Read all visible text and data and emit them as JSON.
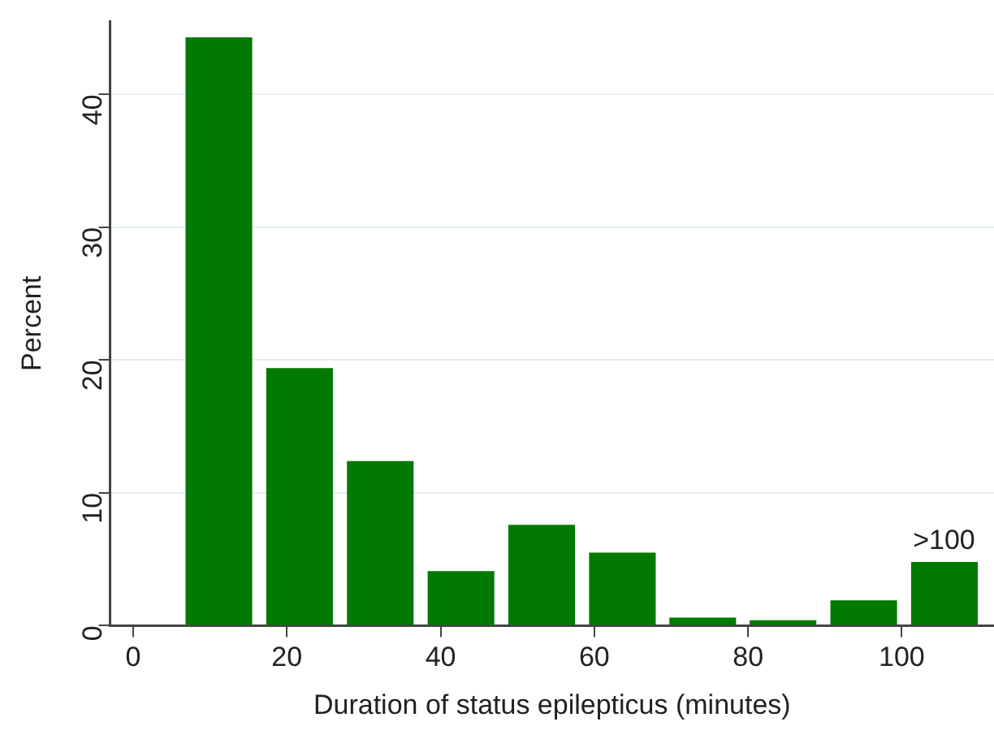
{
  "chart_data": {
    "type": "histogram",
    "xlabel": "Duration of status epilepticus (minutes)",
    "ylabel": "Percent",
    "bins": [
      5.9,
      16.4,
      26.9,
      37.4,
      47.9,
      58.4,
      68.9,
      79.3,
      89.8,
      100.3,
      110.8
    ],
    "values": [
      44.3,
      19.4,
      12.4,
      4.1,
      7.6,
      5.5,
      0.6,
      0.4,
      1.9,
      4.8
    ],
    "color": "#007a00",
    "xlim": [
      -3,
      112
    ],
    "xticks": [
      0,
      20,
      40,
      60,
      80,
      100
    ],
    "ylim": [
      0,
      45.5
    ],
    "yticks": [
      0,
      10,
      20,
      30,
      40
    ],
    "grid": "y",
    "legend": false,
    "annotations": [
      {
        "text": ">100",
        "x": 105.5,
        "y": 4.8
      }
    ]
  }
}
